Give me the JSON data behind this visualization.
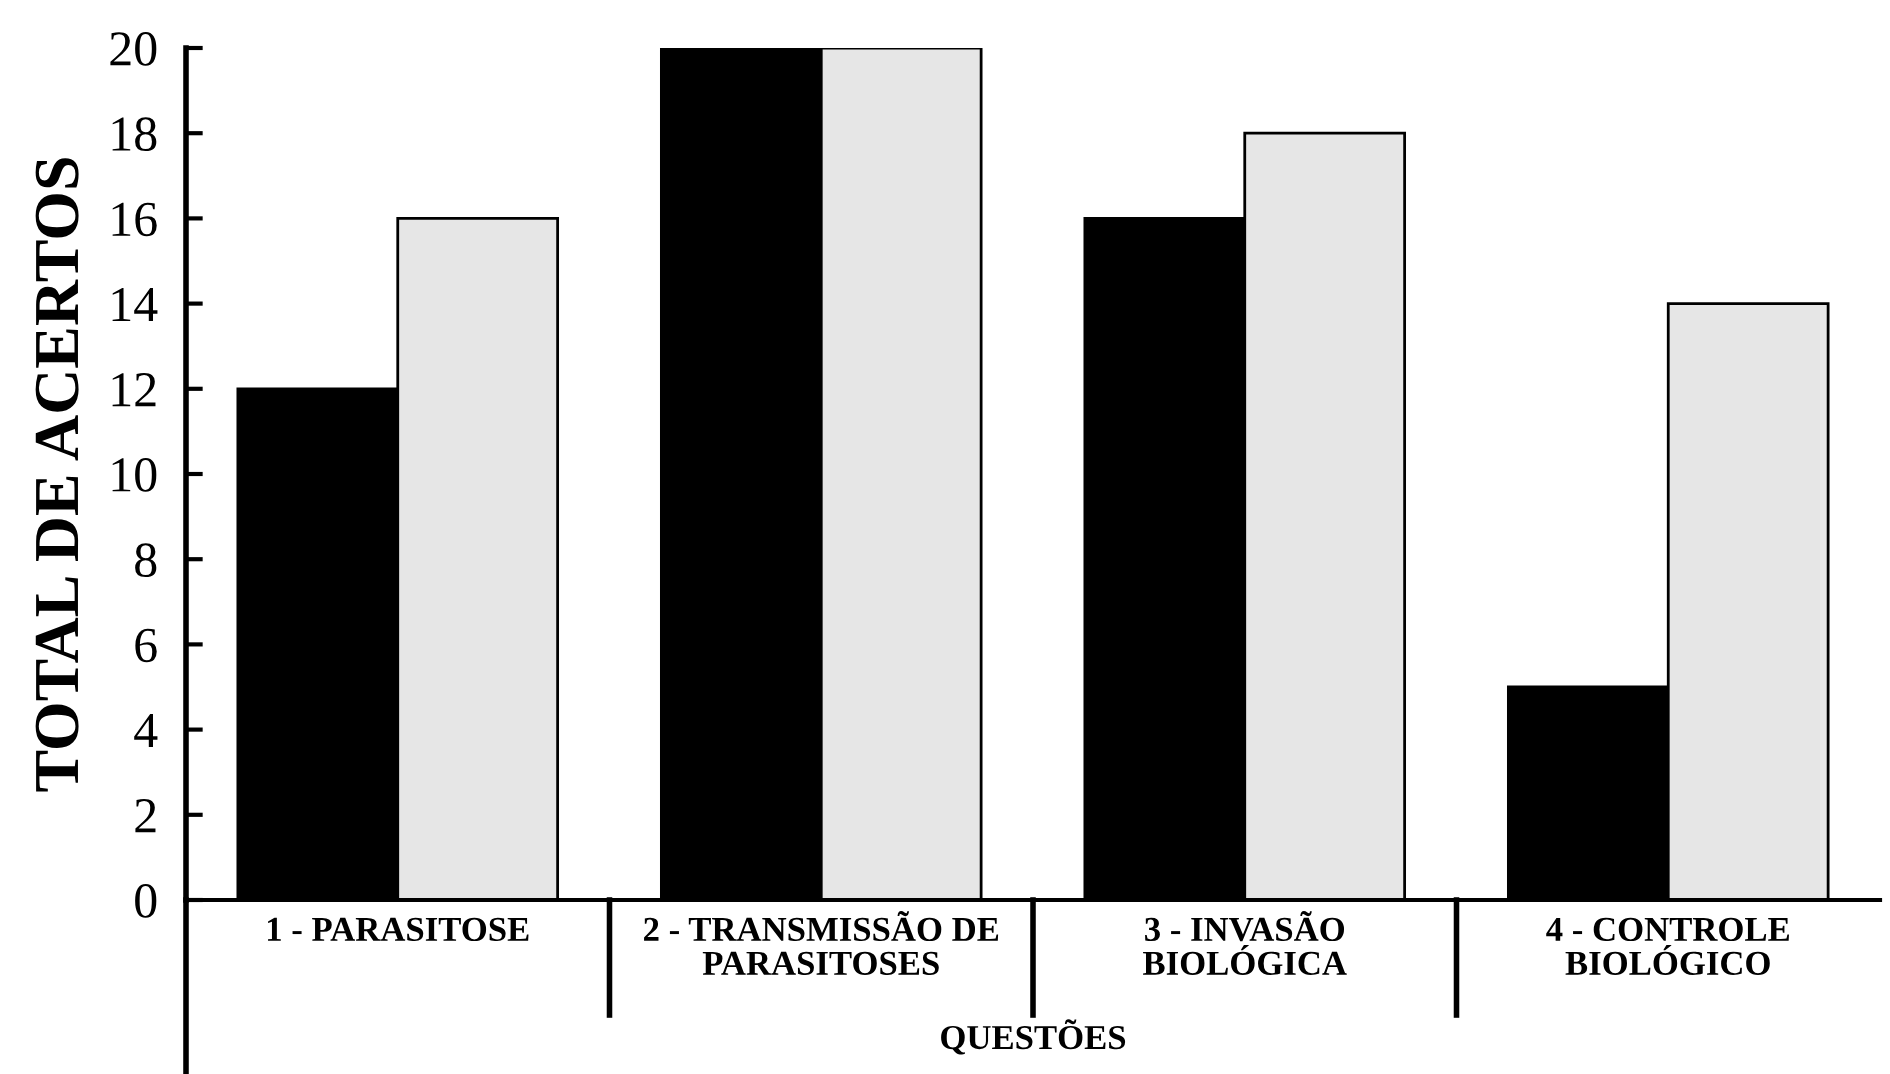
{
  "chart_data": {
    "type": "bar",
    "categories": [
      "1 - PARASITOSE",
      "2 - TRANSMISSÃO DE\nPARASITOSES",
      "3 - INVASÃO\nBIOLÓGICA",
      "4 - CONTROLE\nBIOLÓGICO"
    ],
    "series": [
      {
        "color": "#000000",
        "values": [
          12,
          20,
          16,
          5
        ]
      },
      {
        "color": "#e6e6e6",
        "values": [
          16,
          20,
          18,
          14
        ]
      }
    ],
    "xlabel": "QUESTÕES",
    "ylabel": "TOTAL DE ACERTOS",
    "ylim": [
      0,
      20
    ],
    "yticks": [
      0,
      2,
      4,
      6,
      8,
      10,
      12,
      14,
      16,
      18,
      20
    ],
    "grid": false,
    "legend": false
  }
}
